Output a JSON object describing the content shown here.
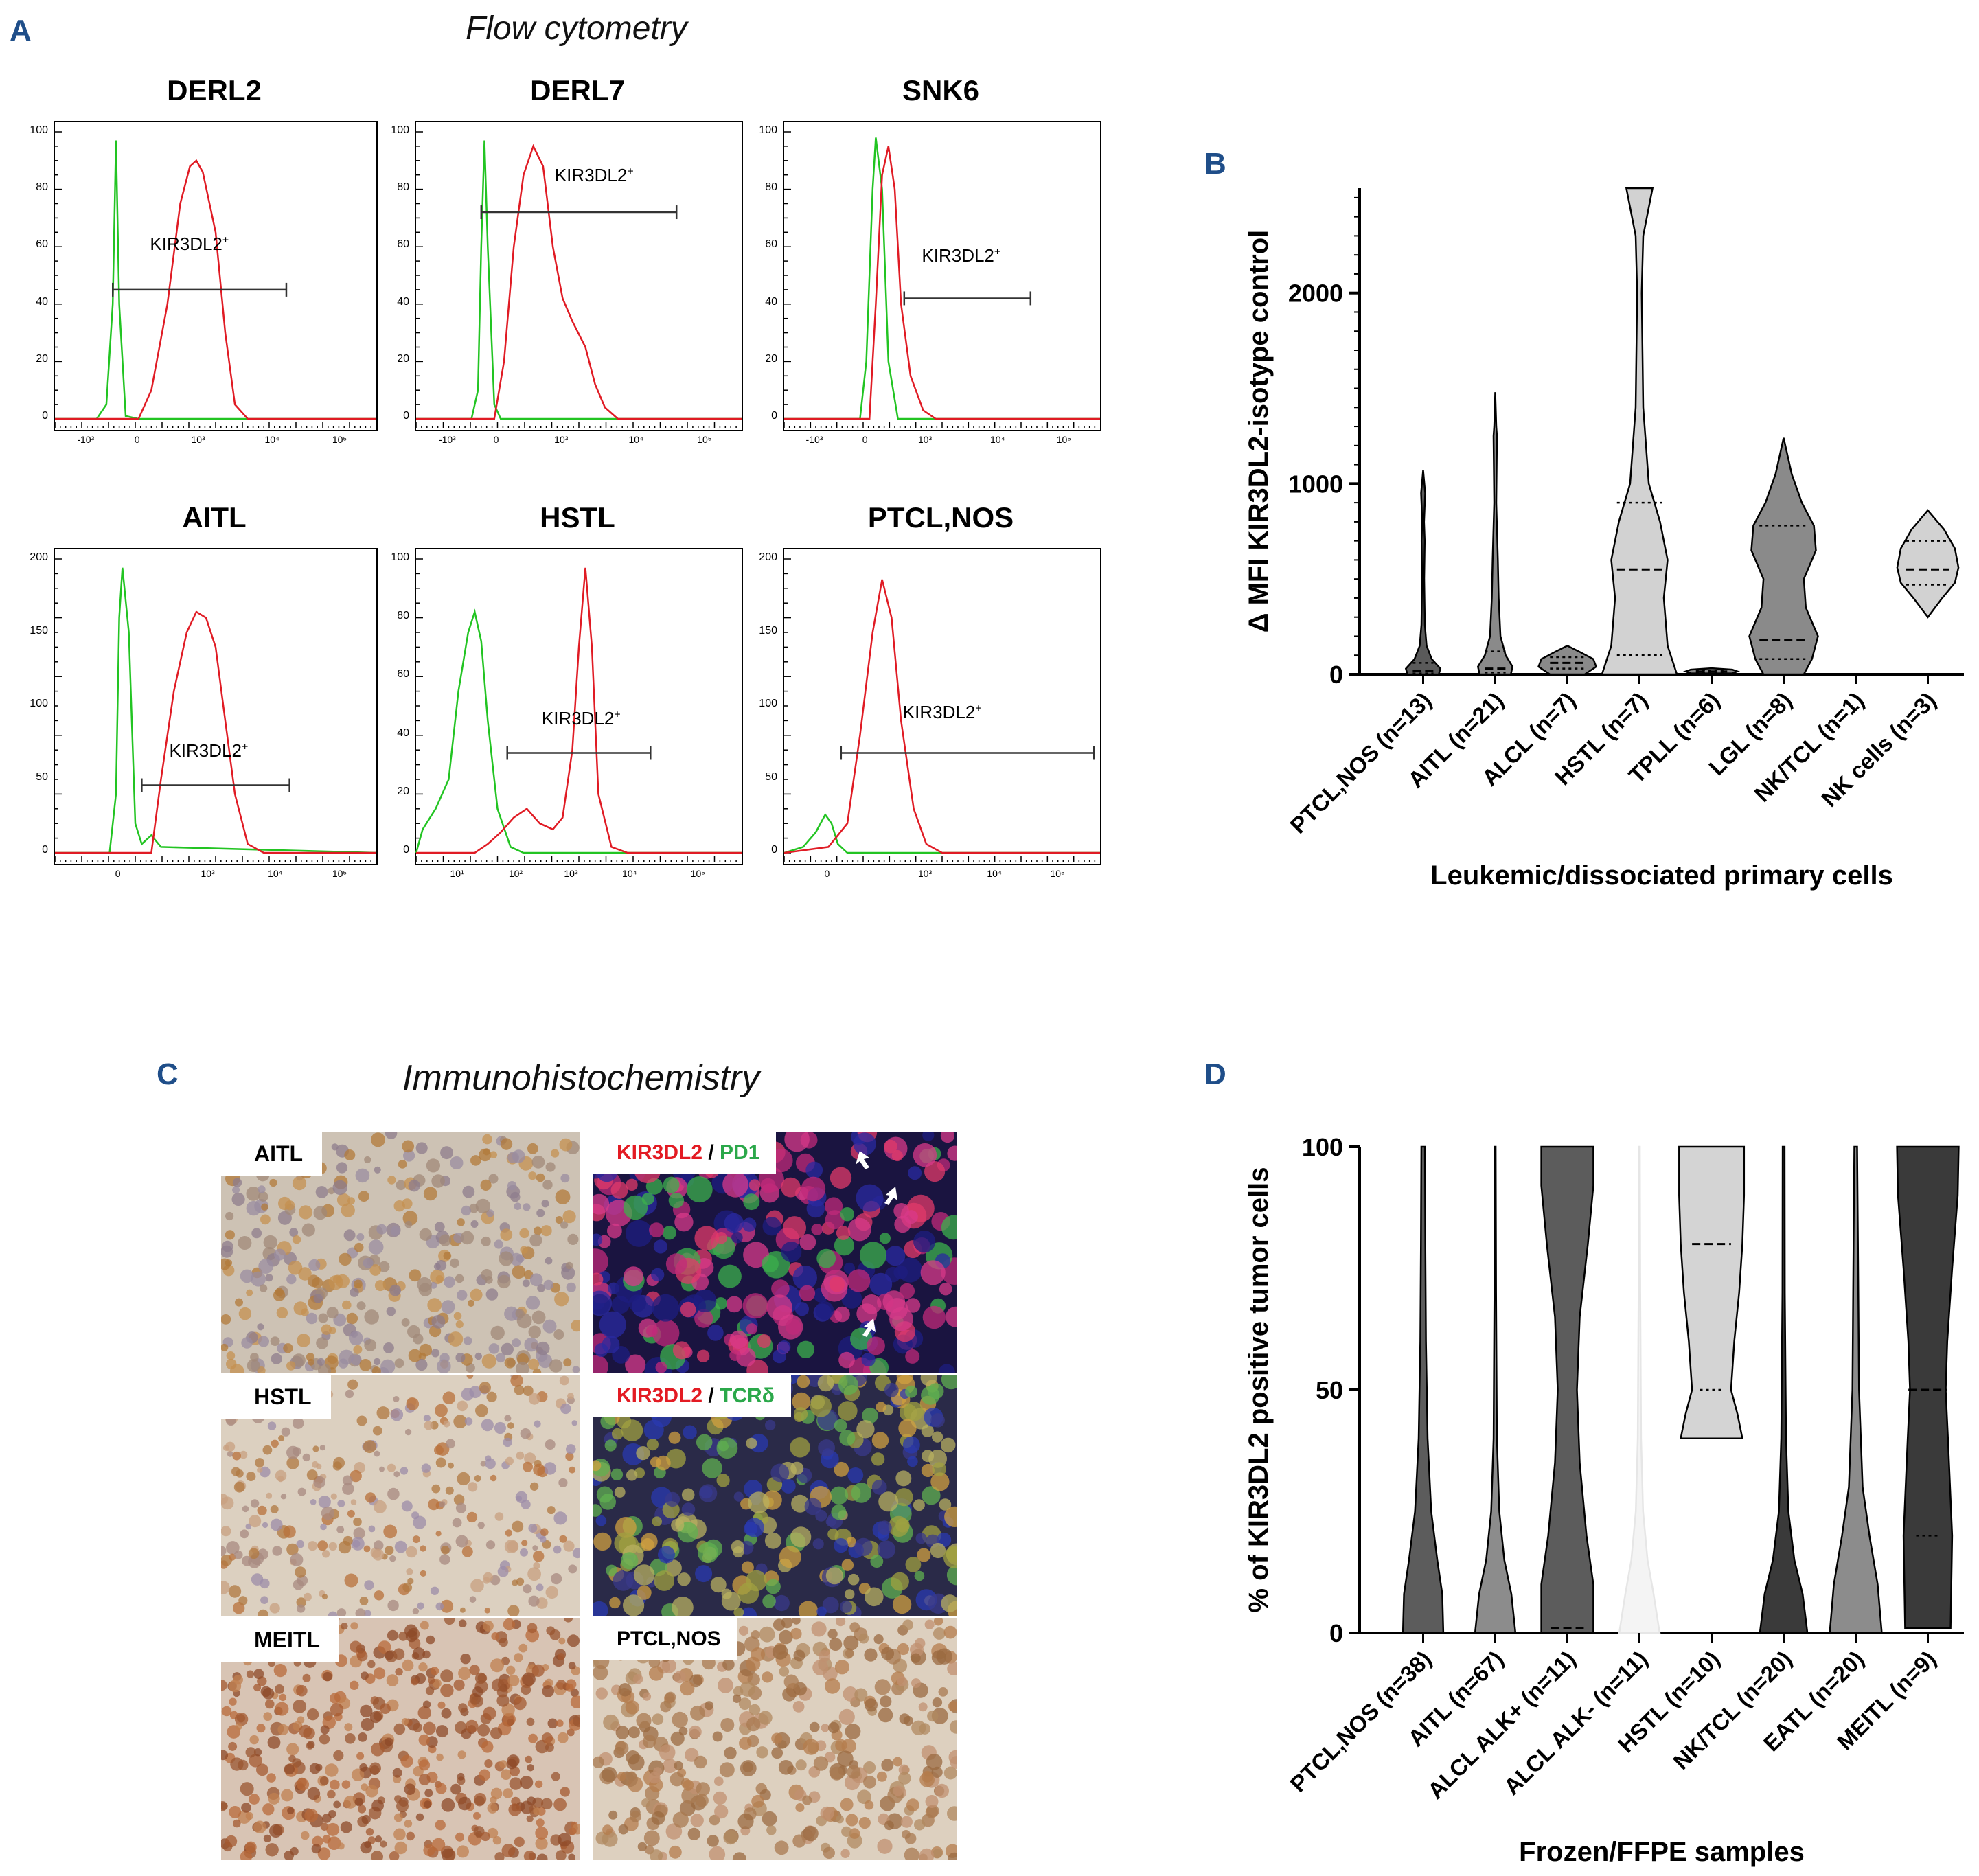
{
  "panels": {
    "A": {
      "letter": "A",
      "title": "Flow cytometry",
      "gate_label": "KIR3DL2",
      "gate_sup": "+",
      "plots": [
        {
          "title": "DERL2",
          "yticks": [
            "100",
            "80",
            "60",
            "40",
            "20",
            "0"
          ],
          "xticks": [
            "-10³",
            "0",
            "10³",
            "10⁴",
            "10⁵"
          ]
        },
        {
          "title": "DERL7",
          "yticks": [
            "100",
            "80",
            "60",
            "40",
            "20",
            "0"
          ],
          "xticks": [
            "-10³",
            "0",
            "10³",
            "10⁴",
            "10⁵"
          ]
        },
        {
          "title": "SNK6",
          "yticks": [
            "100",
            "80",
            "60",
            "40",
            "20",
            "0"
          ],
          "xticks": [
            "-10³",
            "0",
            "10³",
            "10⁴",
            "10⁵"
          ]
        },
        {
          "title": "AITL",
          "yticks": [
            "200",
            "150",
            "100",
            "50",
            "0"
          ],
          "xticks": [
            "0",
            "10³",
            "10⁴",
            "10⁵"
          ]
        },
        {
          "title": "HSTL",
          "yticks": [
            "100",
            "80",
            "60",
            "40",
            "20",
            "0"
          ],
          "xticks": [
            "10¹",
            "10²",
            "10³",
            "10⁴",
            "10⁵"
          ]
        },
        {
          "title": "PTCL,NOS",
          "yticks": [
            "200",
            "150",
            "100",
            "50",
            "0"
          ],
          "xticks": [
            "0",
            "10³",
            "10⁴",
            "10⁵"
          ]
        }
      ]
    },
    "B": {
      "letter": "B",
      "colors": {
        "dark": "#5a5a5a",
        "mid": "#8a8a8a",
        "light": "#d2d2d2"
      }
    },
    "C": {
      "letter": "C",
      "title": "Immunohistochemistry",
      "tiles": [
        {
          "label": "AITL"
        },
        {
          "label_a": "KIR3DL2",
          "sep": " / ",
          "label_b": "PD1"
        },
        {
          "label": "HSTL"
        },
        {
          "label_a": "KIR3DL2",
          "sep": " / ",
          "label_b": "TCRδ"
        },
        {
          "label": "MEITL"
        },
        {
          "label": "PTCL,NOS"
        }
      ]
    },
    "D": {
      "letter": "D"
    }
  },
  "chart_data": [
    {
      "type": "violin",
      "panel": "B",
      "ylabel": "Δ MFI KIR3DL2-isotype control",
      "xlabel": "Leukemic/dissociated primary cells",
      "ylim": [
        0,
        2550
      ],
      "yticks": [
        0,
        1000,
        2000
      ],
      "categories": [
        "PTCL,NOS (n=13)",
        "AITL (n=21)",
        "ALCL (n=7)",
        "HSTL (n=7)",
        "TPLL (n=6)",
        "LGL (n=8)",
        "NK/TCL (n=1)",
        "NK cells (n=3)"
      ],
      "series": [
        {
          "max": 1070,
          "median": 20,
          "q1": 5,
          "q3": 60
        },
        {
          "max": 1480,
          "median": 30,
          "q1": 10,
          "q3": 120
        },
        {
          "max": 150,
          "median": 60,
          "q1": 30,
          "q3": 90
        },
        {
          "max": 2550,
          "median": 550,
          "q1": 100,
          "q3": 900
        },
        {
          "max": 30,
          "median": 15,
          "q1": 10,
          "q3": 20
        },
        {
          "max": 1240,
          "median": 180,
          "q1": 80,
          "q3": 780
        },
        {
          "max": 0,
          "median": 0,
          "q1": 0,
          "q3": 0
        },
        {
          "max": 860,
          "median": 550,
          "q1": 470,
          "q3": 700
        }
      ]
    },
    {
      "type": "violin",
      "panel": "D",
      "ylabel": "% of KIR3DL2 positive tumor cells",
      "xlabel": "Frozen/FFPE samples",
      "ylim": [
        0,
        100
      ],
      "yticks": [
        0,
        50,
        100
      ],
      "categories": [
        "PTCL,NOS (n=38)",
        "AITL (n=67)",
        "ALCL ALK+ (n=11)",
        "ALCL ALK- (n=11)",
        "HSTL (n=10)",
        "NK/TCL (n=20)",
        "EATL (n=20)",
        "MEITL (n=9)"
      ],
      "series": [
        {
          "min": 0,
          "max": 100,
          "median": 0
        },
        {
          "min": 0,
          "max": 100,
          "median": 0
        },
        {
          "min": 0,
          "max": 100,
          "median": 1
        },
        {
          "min": 0,
          "max": 100,
          "median": 0
        },
        {
          "min": 40,
          "max": 100,
          "median": 80,
          "q1": 50
        },
        {
          "min": 0,
          "max": 100,
          "median": 0
        },
        {
          "min": 0,
          "max": 100,
          "median": 0
        },
        {
          "min": 1,
          "max": 100,
          "median": 50,
          "q1": 20
        }
      ]
    }
  ]
}
